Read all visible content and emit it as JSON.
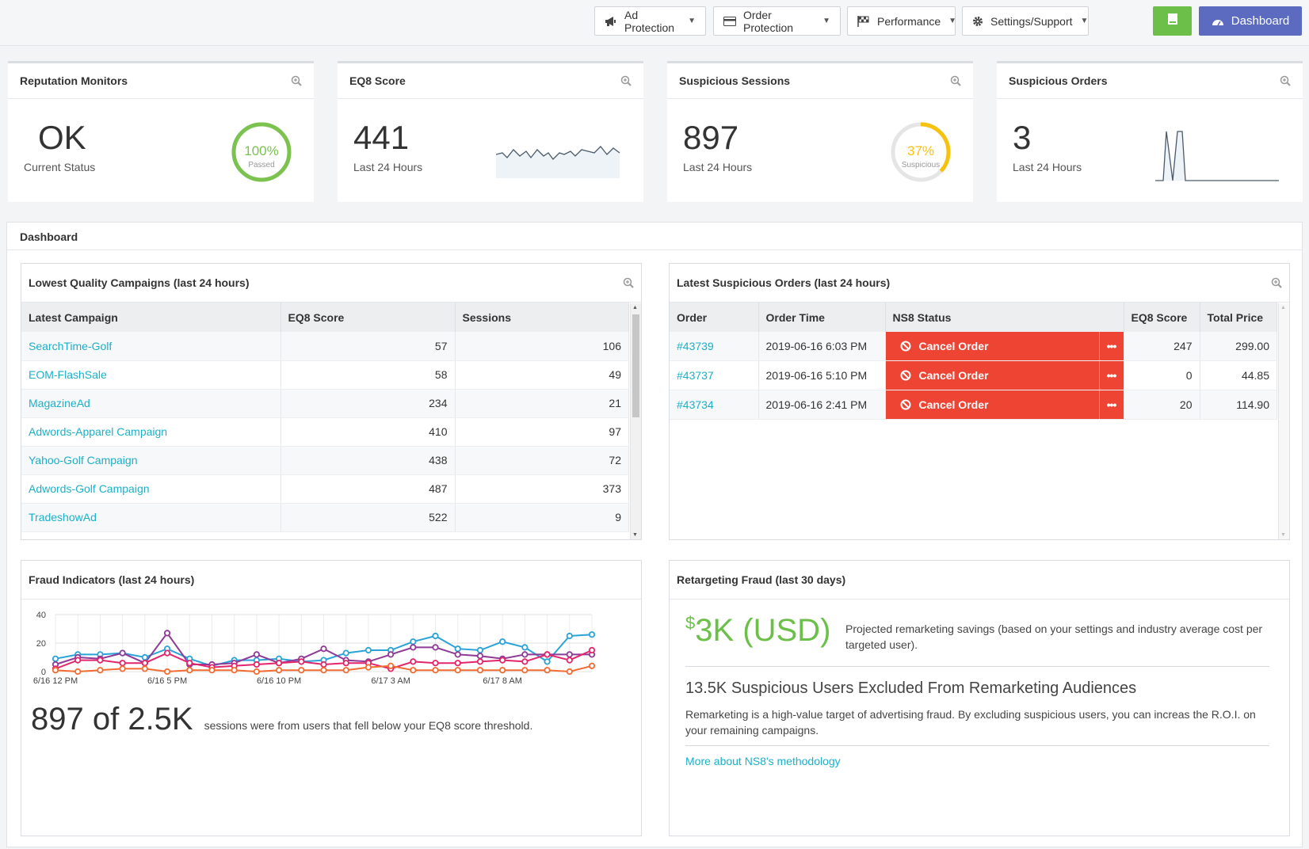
{
  "nav": {
    "ad_protection": "Ad Protection",
    "order_protection": "Order Protection",
    "performance": "Performance",
    "settings_support": "Settings/Support",
    "dashboard": "Dashboard"
  },
  "cards": {
    "reputation": {
      "title": "Reputation Monitors",
      "value": "OK",
      "label": "Current Status",
      "gauge_value": "100%",
      "gauge_label": "Passed",
      "gauge_fraction": 1.0
    },
    "eq8": {
      "title": "EQ8 Score",
      "value": "441",
      "label": "Last 24 Hours"
    },
    "sessions": {
      "title": "Suspicious Sessions",
      "value": "897",
      "label": "Last 24 Hours",
      "gauge_value": "37%",
      "gauge_label": "Suspicious",
      "gauge_fraction": 0.37
    },
    "orders": {
      "title": "Suspicious Orders",
      "value": "3",
      "label": "Last 24 Hours"
    }
  },
  "dashboard": {
    "title": "Dashboard"
  },
  "campaigns": {
    "title": "Lowest Quality Campaigns (last 24 hours)",
    "columns": [
      "Latest Campaign",
      "EQ8 Score",
      "Sessions"
    ],
    "rows": [
      {
        "name": "SearchTime-Golf",
        "score": "57",
        "sessions": "106"
      },
      {
        "name": "EOM-FlashSale",
        "score": "58",
        "sessions": "49"
      },
      {
        "name": "MagazineAd",
        "score": "234",
        "sessions": "21"
      },
      {
        "name": "Adwords-Apparel Campaign",
        "score": "410",
        "sessions": "97"
      },
      {
        "name": "Yahoo-Golf Campaign",
        "score": "438",
        "sessions": "72"
      },
      {
        "name": "Adwords-Golf Campaign",
        "score": "487",
        "sessions": "373"
      },
      {
        "name": "TradeshowAd",
        "score": "522",
        "sessions": "9"
      }
    ]
  },
  "orders": {
    "title": "Latest Suspicious Orders (last 24 hours)",
    "columns": [
      "Order",
      "Order Time",
      "NS8 Status",
      "EQ8 Score",
      "Total Price"
    ],
    "action_label": "Cancel Order",
    "more_label": "•••",
    "rows": [
      {
        "order": "#43739",
        "time": "2019-06-16 6:03 PM",
        "score": "247",
        "price": "299.00"
      },
      {
        "order": "#43737",
        "time": "2019-06-16 5:10 PM",
        "score": "0",
        "price": "44.85"
      },
      {
        "order": "#43734",
        "time": "2019-06-16 2:41 PM",
        "score": "20",
        "price": "114.90"
      }
    ]
  },
  "fraud": {
    "title": "Fraud Indicators (last 24 hours)",
    "summary_value": "897 of 2.5K",
    "summary_text": "sessions were from users that fell below your EQ8 score threshold."
  },
  "retargeting": {
    "title": "Retargeting Fraud (last 30 days)",
    "currency_symbol": "$",
    "amount": "3K (USD)",
    "amount_desc": "Projected remarketing savings (based on your settings and industry average cost per targeted user).",
    "excluded_heading": "13.5K Suspicious Users Excluded From Remarketing Audiences",
    "excluded_desc": "Remarketing is a high-value target of advertising fraud. By excluding suspicious users, you can increas the R.O.I. on your remaining campaigns.",
    "link": "More about NS8's methodology"
  },
  "chart_data": {
    "type": "line",
    "title": "Fraud Indicators (last 24 hours)",
    "ylim": [
      0,
      40
    ],
    "yticks": [
      "0",
      "20",
      "40"
    ],
    "xticks": [
      "6/16 12 PM",
      "6/16 5 PM",
      "6/16 10 PM",
      "6/17 3 AM",
      "6/17 8 AM"
    ],
    "xtick_index": [
      0,
      5,
      10,
      15,
      20
    ],
    "n": 25,
    "series": [
      {
        "name": "cyan",
        "color": "#2aa3d8",
        "values": [
          9,
          12,
          12,
          13,
          10,
          16,
          9,
          4,
          8,
          8,
          9,
          7,
          8,
          13,
          15,
          15,
          21,
          25,
          16,
          15,
          21,
          17,
          7,
          25,
          26
        ]
      },
      {
        "name": "purple",
        "color": "#8e3a96",
        "values": [
          5,
          10,
          9,
          13,
          6,
          27,
          5,
          5,
          6,
          12,
          6,
          9,
          16,
          8,
          7,
          12,
          17,
          17,
          12,
          11,
          9,
          12,
          12,
          12,
          12
        ]
      },
      {
        "name": "magenta",
        "color": "#e3256b",
        "values": [
          2,
          8,
          8,
          6,
          6,
          13,
          6,
          3,
          4,
          5,
          6,
          7,
          5,
          6,
          6,
          2,
          7,
          6,
          6,
          7,
          8,
          7,
          12,
          8,
          15
        ]
      },
      {
        "name": "orange",
        "color": "#f26c32",
        "values": [
          1,
          0,
          1,
          2,
          2,
          0,
          1,
          1,
          1,
          0,
          1,
          1,
          1,
          1,
          3,
          4,
          1,
          1,
          1,
          1,
          1,
          1,
          1,
          0,
          4
        ]
      }
    ]
  }
}
